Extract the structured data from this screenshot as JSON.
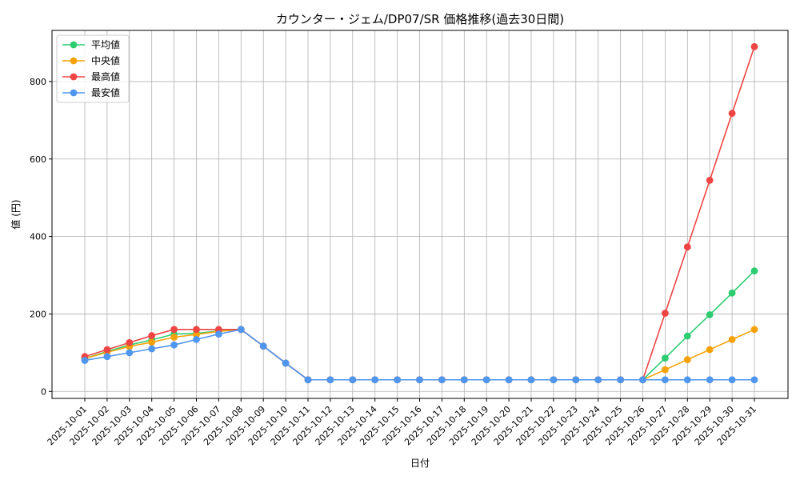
{
  "chart_data": {
    "type": "line",
    "title": "カウンター・ジェム/DP07/SR 価格推移(過去30日間)",
    "xlabel": "日付",
    "ylabel": "値 (円)",
    "x": [
      "2025-10-01",
      "2025-10-02",
      "2025-10-03",
      "2025-10-04",
      "2025-10-05",
      "2025-10-06",
      "2025-10-07",
      "2025-10-08",
      "2025-10-09",
      "2025-10-10",
      "2025-10-11",
      "2025-10-12",
      "2025-10-13",
      "2025-10-14",
      "2025-10-15",
      "2025-10-16",
      "2025-10-17",
      "2025-10-18",
      "2025-10-19",
      "2025-10-20",
      "2025-10-21",
      "2025-10-22",
      "2025-10-23",
      "2025-10-24",
      "2025-10-25",
      "2025-10-26",
      "2025-10-27",
      "2025-10-28",
      "2025-10-29",
      "2025-10-30",
      "2025-10-31"
    ],
    "ylim": [
      -18,
      932
    ],
    "yticks": [
      0,
      200,
      400,
      600,
      800
    ],
    "grid": true,
    "legend_position": "top-left",
    "series": [
      {
        "name": "平均値",
        "color": "#2ecc71",
        "values": [
          85,
          103,
          120,
          133,
          148,
          150,
          156,
          160,
          117,
          73,
          30,
          30,
          30,
          30,
          30,
          30,
          30,
          30,
          30,
          30,
          30,
          30,
          30,
          30,
          30,
          30,
          86,
          143,
          198,
          254,
          311
        ]
      },
      {
        "name": "中央値",
        "color": "#f5a20a",
        "values": [
          85,
          101,
          116,
          127,
          140,
          147,
          155,
          160,
          117,
          73,
          30,
          30,
          30,
          30,
          30,
          30,
          30,
          30,
          30,
          30,
          30,
          30,
          30,
          30,
          30,
          30,
          56,
          82,
          108,
          134,
          160
        ]
      },
      {
        "name": "最高値",
        "color": "#ef4444",
        "values": [
          90,
          108,
          126,
          144,
          160,
          160,
          160,
          160,
          117,
          73,
          30,
          30,
          30,
          30,
          30,
          30,
          30,
          30,
          30,
          30,
          30,
          30,
          30,
          30,
          30,
          30,
          202,
          373,
          545,
          718,
          890
        ]
      },
      {
        "name": "最安値",
        "color": "#4f96ef",
        "values": [
          80,
          90,
          100,
          110,
          120,
          134,
          148,
          160,
          117,
          73,
          30,
          30,
          30,
          30,
          30,
          30,
          30,
          30,
          30,
          30,
          30,
          30,
          30,
          30,
          30,
          30,
          30,
          30,
          30,
          30,
          30
        ]
      }
    ]
  }
}
